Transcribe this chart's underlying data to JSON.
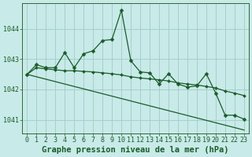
{
  "title": "Graphe pression niveau de la mer (hPa)",
  "bg_color": "#c8eae8",
  "line_color": "#1a5c28",
  "grid_color": "#a0ccc8",
  "spine_color": "#336633",
  "xlim": [
    -0.5,
    23.5
  ],
  "ylim": [
    1040.55,
    1044.85
  ],
  "yticks": [
    1041,
    1042,
    1043,
    1044
  ],
  "xticks": [
    0,
    1,
    2,
    3,
    4,
    5,
    6,
    7,
    8,
    9,
    10,
    11,
    12,
    13,
    14,
    15,
    16,
    17,
    18,
    19,
    20,
    21,
    22,
    23
  ],
  "series_main": [
    1042.5,
    1042.82,
    1042.72,
    1042.72,
    1043.22,
    1042.72,
    1043.18,
    1043.28,
    1043.62,
    1043.65,
    1044.62,
    1042.95,
    1042.58,
    1042.55,
    1042.18,
    1042.52,
    1042.18,
    1042.08,
    1042.12,
    1042.52,
    1041.88,
    1041.15,
    1041.15,
    1041.02
  ],
  "series_smooth": [
    1042.5,
    1042.72,
    1042.68,
    1042.65,
    1042.62,
    1042.62,
    1042.6,
    1042.58,
    1042.55,
    1042.52,
    1042.48,
    1042.42,
    1042.38,
    1042.35,
    1042.32,
    1042.28,
    1042.22,
    1042.18,
    1042.15,
    1042.1,
    1042.05,
    1041.95,
    1041.88,
    1041.8
  ],
  "series_steep": [
    1042.5,
    1042.42,
    1042.34,
    1042.26,
    1042.18,
    1042.1,
    1042.02,
    1041.94,
    1041.86,
    1041.78,
    1041.7,
    1041.62,
    1041.54,
    1041.46,
    1041.38,
    1041.3,
    1041.22,
    1041.14,
    1041.06,
    1040.98,
    1040.9,
    1040.82,
    1040.74,
    1040.66
  ],
  "tick_fontsize": 6,
  "title_fontsize": 7.5,
  "lw_main": 0.9,
  "lw_smooth": 0.9,
  "lw_steep": 0.9,
  "marker_size_main": 2.5,
  "marker_size_smooth": 2.0
}
